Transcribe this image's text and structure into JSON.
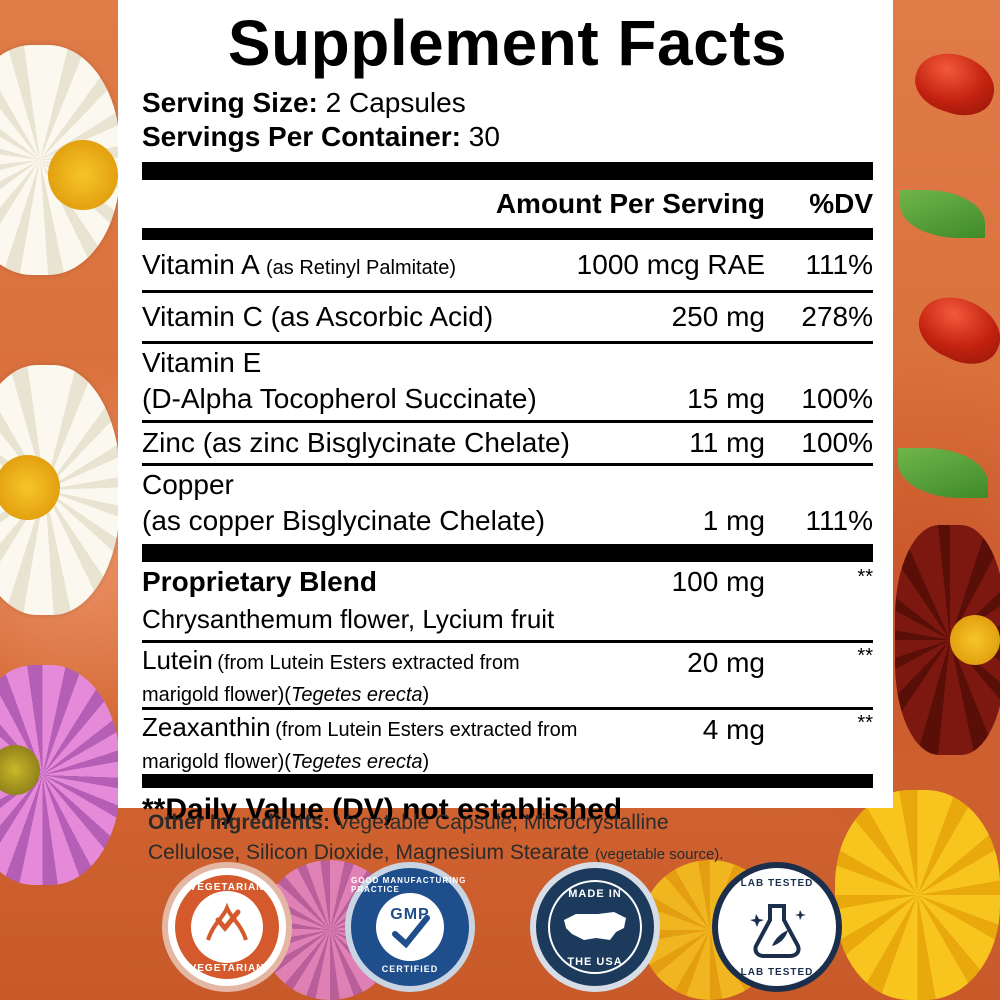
{
  "title": "Supplement Facts",
  "serving_size": {
    "label": "Serving Size:",
    "value": "2 Capsules"
  },
  "servings_per_container": {
    "label": "Servings Per Container:",
    "value": "30"
  },
  "header": {
    "amount": "Amount Per Serving",
    "dv": "%DV"
  },
  "nutrients": [
    {
      "name": "Vitamin A",
      "detail": "(as Retinyl Palmitate)",
      "amount": "1000 mcg RAE",
      "dv": "111%"
    },
    {
      "name": "Vitamin C",
      "detail": "(as Ascorbic Acid)",
      "amount": "250 mg",
      "dv": "278%"
    },
    {
      "name": "Vitamin E",
      "detail": "(D-Alpha Tocopherol Succinate)",
      "amount": "15 mg",
      "dv": "100%"
    },
    {
      "name": "Zinc",
      "detail": "(as zinc Bisglycinate Chelate)",
      "amount": "11 mg",
      "dv": "100%"
    },
    {
      "name": "Copper",
      "detail": "(as copper Bisglycinate Chelate)",
      "amount": "1 mg",
      "dv": "111%"
    }
  ],
  "blend": {
    "name": "Proprietary Blend",
    "amount": "100 mg",
    "dv": "**",
    "contents": "Chrysanthemum flower, Lycium fruit"
  },
  "lutein": {
    "name": "Lutein",
    "detail_a": "(from Lutein Esters extracted from",
    "detail_b": "marigold flower)(",
    "latin": "Tegetes erecta",
    "close": ")",
    "amount": "20 mg",
    "dv": "**"
  },
  "zeaxanthin": {
    "name": "Zeaxanthin",
    "detail_a": "(from Lutein Esters extracted from",
    "detail_b": "marigold flower)(",
    "latin": "Tegetes erecta",
    "close": ")",
    "amount": "4 mg",
    "dv": "**"
  },
  "footnote": "**Daily Value (DV) not established",
  "other": {
    "label": "Other Ingredients:",
    "text1": "Vegetable Capsule, Microcrystalline",
    "text2": "Cellulose, Silicon Dioxide, Magnesium Stearate",
    "note": "(vegetable source)."
  },
  "badges": {
    "vegetarian": {
      "top": "VEGETARIAN",
      "bottom": "VEGETARIAN"
    },
    "gmp": {
      "ring": "GOOD MANUFACTURING PRACTICE",
      "center": "GMP",
      "bottom": "CERTIFIED"
    },
    "usa": {
      "top": "MADE IN",
      "bottom": "THE USA"
    },
    "lab": {
      "top": "LAB TESTED",
      "bottom": "LAB TESTED"
    }
  },
  "colors": {
    "background": "#d9713e",
    "panel": "#ffffff",
    "ink": "#000000",
    "gmp_blue": "#1f4e8c",
    "usa_navy": "#1b3a5c"
  }
}
